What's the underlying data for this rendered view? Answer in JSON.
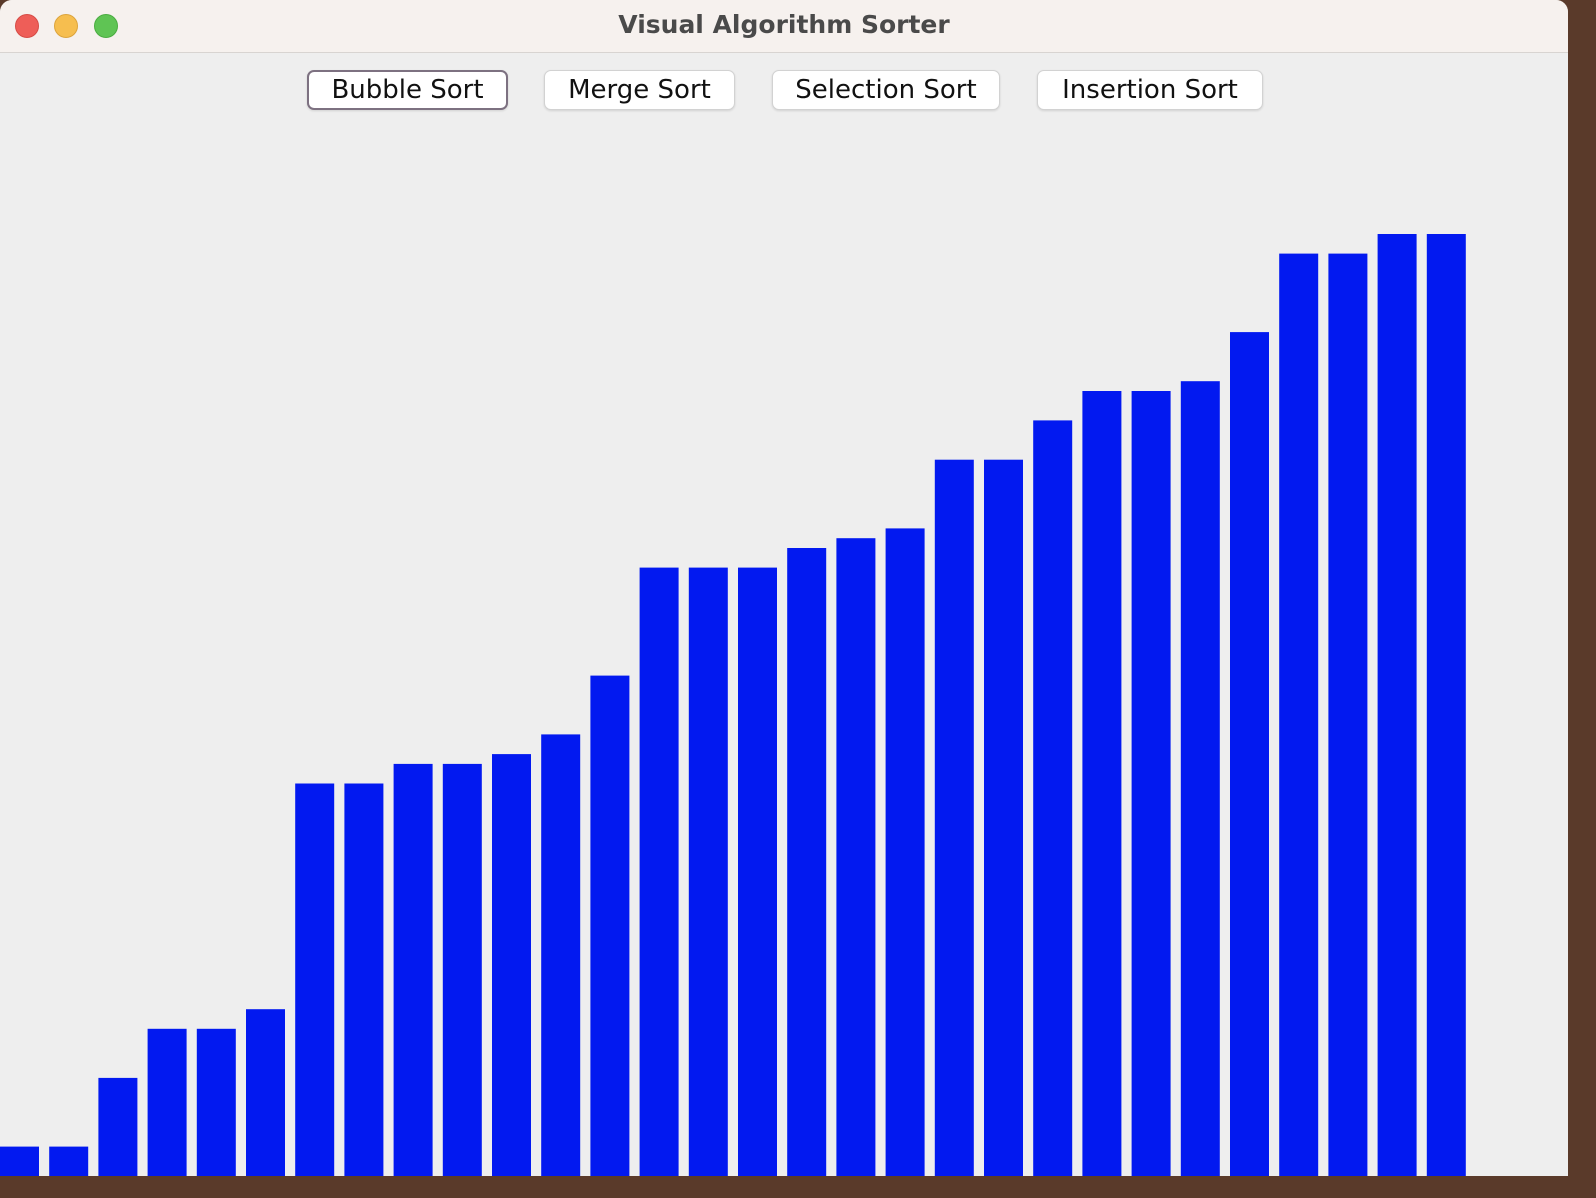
{
  "window": {
    "title": "Visual Algorithm Sorter"
  },
  "toolbar": {
    "buttons": [
      {
        "label": "Bubble Sort",
        "focused": true
      },
      {
        "label": "Merge Sort",
        "focused": false
      },
      {
        "label": "Selection Sort",
        "focused": false
      },
      {
        "label": "Insertion Sort",
        "focused": false
      }
    ]
  },
  "colors": {
    "bar": "#0219f0",
    "background": "#eeeeee"
  },
  "chart_data": {
    "type": "bar",
    "values": [
      3,
      3,
      10,
      15,
      15,
      17,
      40,
      40,
      42,
      42,
      43,
      45,
      51,
      62,
      62,
      62,
      64,
      65,
      66,
      73,
      73,
      77,
      80,
      80,
      81,
      86,
      94,
      94,
      96,
      96
    ],
    "ylim": [
      0,
      96
    ]
  }
}
